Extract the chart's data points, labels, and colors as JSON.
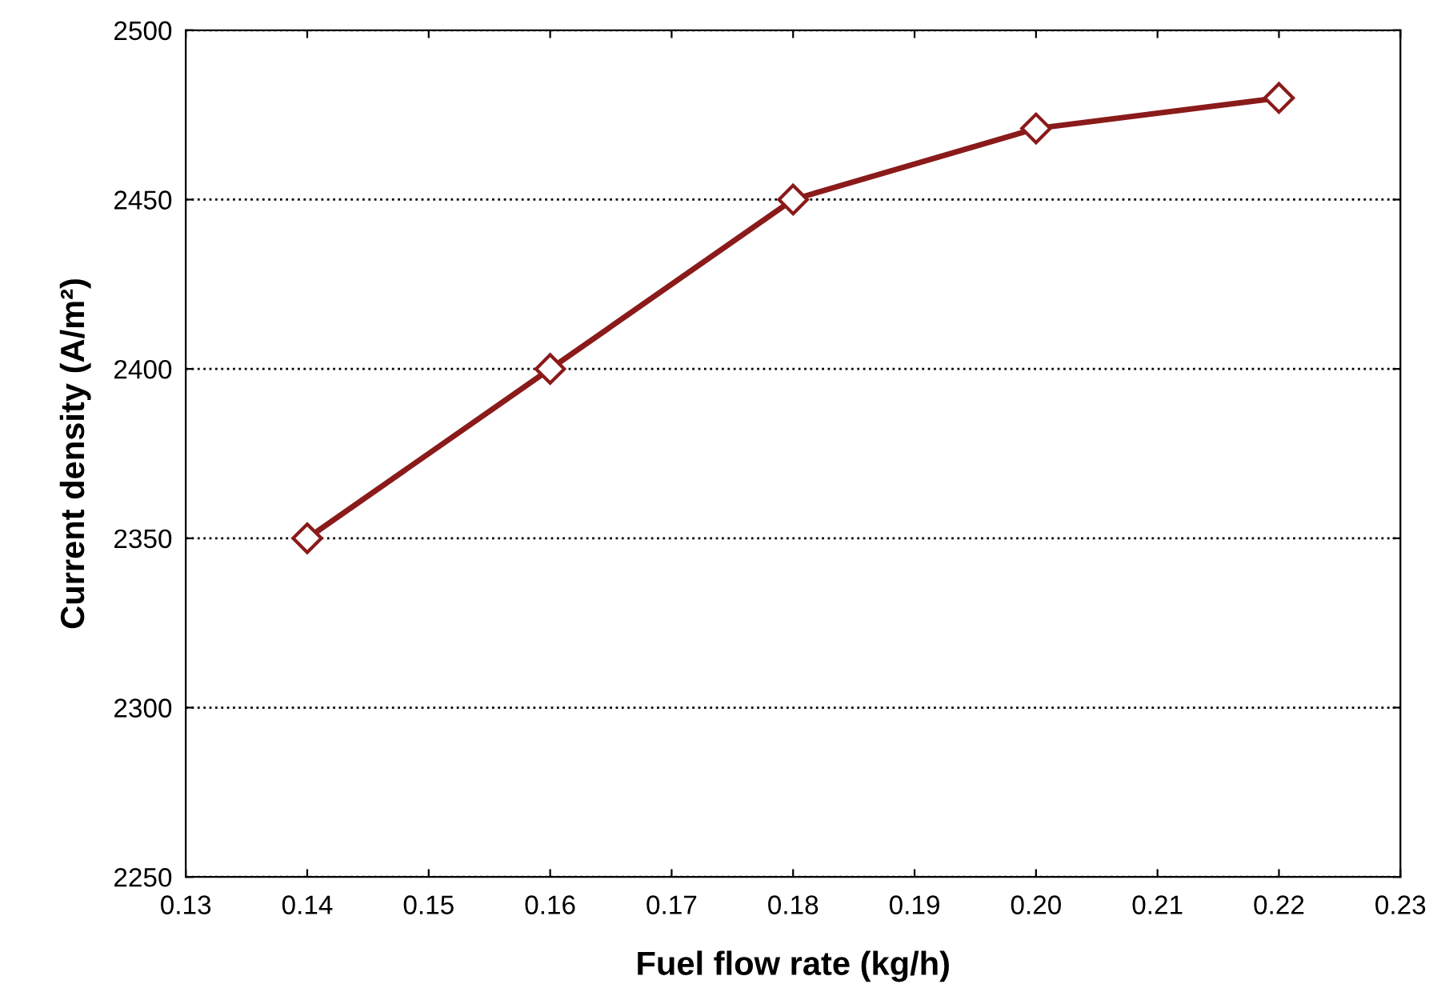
{
  "chart_data": {
    "type": "line",
    "xlabel": "Fuel flow rate (kg/h)",
    "ylabel": "Current density (A/m²)",
    "x": [
      0.14,
      0.16,
      0.18,
      0.2,
      0.22
    ],
    "series": [
      {
        "color": "#8b1a1a",
        "values": [
          2350,
          2400,
          2450,
          2471,
          2480
        ]
      }
    ],
    "xlim": [
      0.13,
      0.23
    ],
    "xticks": [
      0.13,
      0.14,
      0.15,
      0.16,
      0.17,
      0.18,
      0.19,
      {
        "value": 0.2,
        "label": "0.20"
      },
      0.21,
      0.22,
      0.23
    ],
    "ylim": [
      2250,
      2500
    ],
    "yticks": [
      2250,
      2300,
      2350,
      2400,
      2450,
      2500
    ],
    "grid": "y",
    "marker": "diamond",
    "line_style": "solid",
    "legend": false
  }
}
